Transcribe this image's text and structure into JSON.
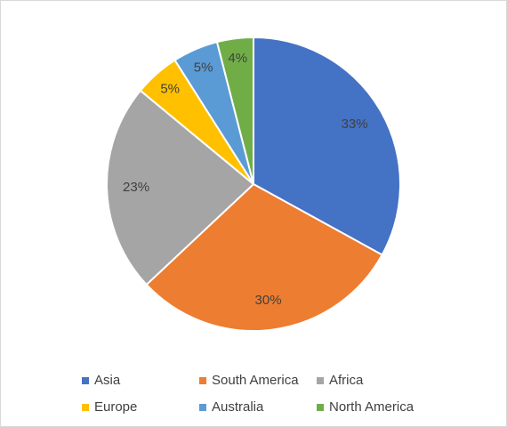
{
  "chart_data": {
    "type": "pie",
    "categories": [
      "Asia",
      "South America",
      "Africa",
      "Europe",
      "Australia",
      "North America"
    ],
    "values": [
      33,
      30,
      23,
      5,
      5,
      4
    ],
    "value_labels": [
      "33%",
      "30%",
      "23%",
      "5%",
      "5%",
      "4%"
    ],
    "colors": [
      "#4472c4",
      "#ed7d31",
      "#a5a5a5",
      "#ffc000",
      "#5b9bd5",
      "#70ad47"
    ],
    "legend": "bottom"
  }
}
